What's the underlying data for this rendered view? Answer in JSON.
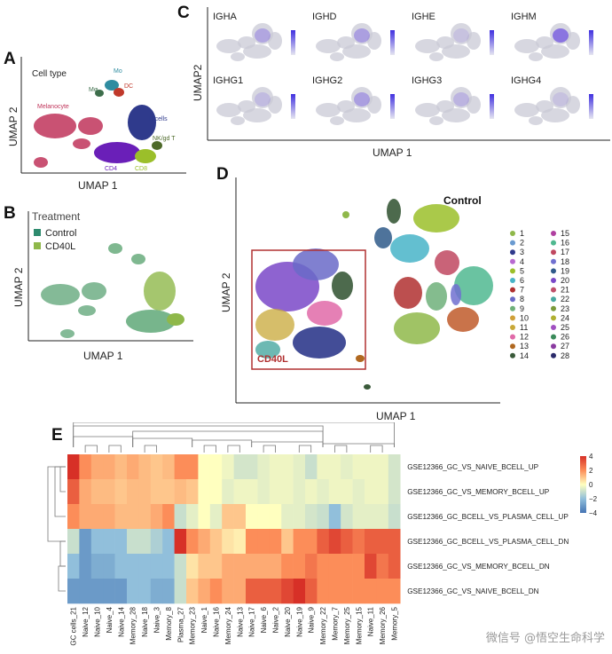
{
  "panels": {
    "A": {
      "letter": "A",
      "title": "Cell type",
      "xlabel": "UMAP 1",
      "ylabel": "UMAP 2",
      "clusters": [
        {
          "label": "Melanocyte",
          "color": "#c0345a"
        },
        {
          "label": "Mo",
          "color": "#2f8ca0"
        },
        {
          "label": "Mφ",
          "color": "#3d6e4b"
        },
        {
          "label": "DC",
          "color": "#c0392b"
        },
        {
          "label": "B cells",
          "color": "#2f3a8c"
        },
        {
          "label": "NK/gd T",
          "color": "#4e6a2a"
        },
        {
          "label": "CD4",
          "color": "#6a1fb8"
        },
        {
          "label": "CD8",
          "color": "#9bbf2a"
        }
      ]
    },
    "B": {
      "letter": "B",
      "title": "Treatment",
      "xlabel": "UMAP 1",
      "ylabel": "UMAP 2",
      "legend": [
        {
          "label": "Control",
          "color": "#2e8b6e"
        },
        {
          "label": "CD40L",
          "color": "#8fb84a"
        }
      ]
    },
    "C": {
      "letter": "C",
      "xlabel": "UMAP 1",
      "ylabel": "UMAP2",
      "genes": [
        "IGHA",
        "IGHD",
        "IGHE",
        "IGHM",
        "IGHG1",
        "IGHG2",
        "IGHG3",
        "IGHG4"
      ]
    },
    "D": {
      "letter": "D",
      "xlabel": "UMAP 1",
      "ylabel": "UMAP 2",
      "label_control": "Control",
      "label_cd40l": "CD40L",
      "legend": [
        {
          "label": "1",
          "color": "#8fb84a"
        },
        {
          "label": "2",
          "color": "#6a9ad0"
        },
        {
          "label": "3",
          "color": "#2f3a8c"
        },
        {
          "label": "4",
          "color": "#b86ad0"
        },
        {
          "label": "5",
          "color": "#9bbf2a"
        },
        {
          "label": "6",
          "color": "#48b4c8"
        },
        {
          "label": "7",
          "color": "#b03030"
        },
        {
          "label": "8",
          "color": "#6a6ac8"
        },
        {
          "label": "9",
          "color": "#6fb07a"
        },
        {
          "label": "10",
          "color": "#d0a038"
        },
        {
          "label": "11",
          "color": "#c8a838"
        },
        {
          "label": "12",
          "color": "#e06aa8"
        },
        {
          "label": "13",
          "color": "#b06820"
        },
        {
          "label": "14",
          "color": "#3a5a3a"
        },
        {
          "label": "15",
          "color": "#b040a0"
        },
        {
          "label": "16",
          "color": "#50b890"
        },
        {
          "label": "17",
          "color": "#c04860"
        },
        {
          "label": "18",
          "color": "#7070d0"
        },
        {
          "label": "19",
          "color": "#2f5a8a"
        },
        {
          "label": "20",
          "color": "#7a48c8"
        },
        {
          "label": "21",
          "color": "#c0506a"
        },
        {
          "label": "22",
          "color": "#48a8a0"
        },
        {
          "label": "23",
          "color": "#7a9a3a"
        },
        {
          "label": "24",
          "color": "#b0b030"
        },
        {
          "label": "25",
          "color": "#a050c0"
        },
        {
          "label": "26",
          "color": "#3a8a5a"
        },
        {
          "label": "27",
          "color": "#8a3aa0"
        },
        {
          "label": "28",
          "color": "#2a2a6a"
        }
      ]
    },
    "E": {
      "letter": "E",
      "colorbar_ticks": [
        "4",
        "2",
        "0",
        "−2",
        "−4"
      ]
    }
  },
  "chart_data": {
    "type": "heatmap",
    "columns": [
      "GC cells_21",
      "Naive_12",
      "Naive_10",
      "Naive_4",
      "Naive_14",
      "Memory_28",
      "Naive_18",
      "Naive_3",
      "Memory_8",
      "Plasma_27",
      "Memory_23",
      "Naive_1",
      "Naive_16",
      "Memory_24",
      "Naive_13",
      "Naive_17",
      "Naive_6",
      "Naive_2",
      "Naive_20",
      "Naive_19",
      "Naive_9",
      "Memory_22",
      "Memory_7",
      "Memory_25",
      "Memory_15",
      "Naive_11",
      "Memory_26",
      "Memory_5"
    ],
    "rows": [
      "GSE12366_GC_VS_NAIVE_BCELL_UP",
      "GSE12366_GC_VS_MEMORY_BCELL_UP",
      "GSE12366_GC_BCELL_VS_PLASMA_CELL_UP",
      "GSE12366_GC_BCELL_VS_PLASMA_CELL_DN",
      "GSE12366_GC_VS_MEMORY_BCELL_DN",
      "GSE12366_GC_VS_NAIVE_BCELL_DN"
    ],
    "values": [
      [
        4,
        2,
        1.5,
        1.5,
        1.2,
        1.5,
        1.2,
        1,
        1.2,
        2,
        2,
        0,
        0,
        -0.3,
        -0.8,
        -0.8,
        -0.5,
        -0.3,
        -0.3,
        -0.5,
        -1,
        -0.3,
        -0.3,
        -0.5,
        -0.3,
        -0.3,
        -0.3,
        -0.8
      ],
      [
        3,
        1.5,
        1.2,
        1.2,
        1,
        1.2,
        1.2,
        1,
        1,
        1.2,
        1,
        0,
        0,
        -0.5,
        -0.3,
        -0.3,
        -0.5,
        -0.3,
        -0.3,
        -0.5,
        -0.3,
        -0.5,
        -0.3,
        -0.3,
        -0.5,
        -0.3,
        -0.3,
        -0.8
      ],
      [
        2,
        1.5,
        1.5,
        1.5,
        1.2,
        1.2,
        1.2,
        1.5,
        2,
        -1,
        -0.5,
        0,
        -0.5,
        1,
        1,
        0,
        0,
        0,
        -0.5,
        -0.5,
        -0.8,
        -1,
        -2,
        -0.8,
        -0.5,
        -0.5,
        -0.5,
        -1
      ],
      [
        -1,
        -3,
        -2,
        -2,
        -2,
        -1,
        -1,
        -1.5,
        -2,
        4.5,
        2,
        1.5,
        1,
        0.5,
        0.3,
        2,
        2,
        2,
        1,
        2,
        2,
        3,
        3.5,
        3,
        2.5,
        3,
        3,
        3
      ],
      [
        -2,
        -3,
        -2.5,
        -2.5,
        -2,
        -2,
        -2,
        -2,
        -2,
        -1,
        0.5,
        1,
        1,
        1.5,
        1.5,
        1.5,
        1.5,
        1.5,
        2,
        2,
        2.5,
        2,
        2,
        2,
        2,
        3.5,
        2.5,
        3
      ],
      [
        -3,
        -3,
        -3,
        -3,
        -3,
        -2,
        -2,
        -2.5,
        -2.5,
        -1,
        1,
        1.5,
        2,
        1.5,
        1.5,
        3,
        3,
        3,
        3.5,
        4,
        3,
        2,
        2,
        2,
        2,
        2,
        2,
        2
      ]
    ],
    "value_range": [
      -4,
      4
    ]
  },
  "watermark": "微信号 @悟空生命科学"
}
